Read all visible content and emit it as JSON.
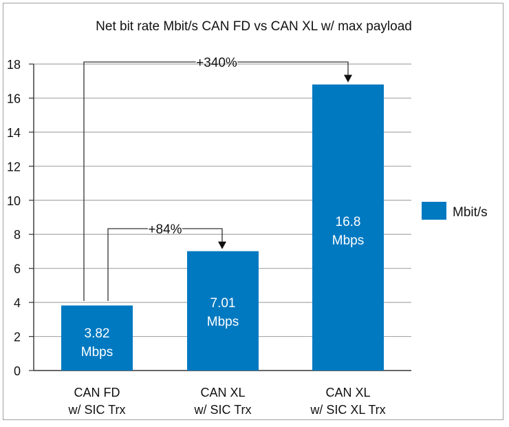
{
  "chart_data": {
    "type": "bar",
    "title": "Net bit rate Mbit/s CAN FD vs CAN XL w/ max payload",
    "xlabel": "",
    "ylabel": "",
    "categories": [
      [
        "CAN FD",
        "w/ SIC Trx"
      ],
      [
        "CAN XL",
        "w/ SIC Trx"
      ],
      [
        "CAN XL",
        "w/ SIC XL Trx"
      ]
    ],
    "series": [
      {
        "name": "Mbit/s",
        "values": [
          3.82,
          7.01,
          16.8
        ],
        "color": "#0079c1"
      }
    ],
    "data_labels": [
      [
        "3.82",
        "Mbps"
      ],
      [
        "7.01",
        "Mbps"
      ],
      [
        "16.8",
        "Mbps"
      ]
    ],
    "ylim": [
      0,
      18
    ],
    "yticks": [
      0,
      2,
      4,
      6,
      8,
      10,
      12,
      14,
      16,
      18
    ],
    "grid": true,
    "legend": {
      "position": "right",
      "entries": [
        "Mbit/s"
      ]
    },
    "annotations": [
      {
        "text": "+84%",
        "from": 0,
        "to": 1
      },
      {
        "text": "+340%",
        "from": 0,
        "to": 2
      }
    ]
  }
}
